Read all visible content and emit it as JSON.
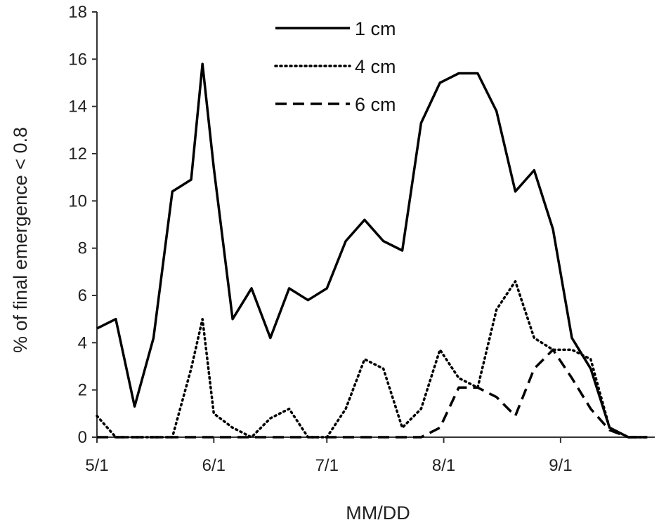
{
  "chart_data": {
    "type": "line",
    "title": "",
    "xlabel": "MM/DD",
    "ylabel": "% of final emergence < 0.8",
    "x_tick_labels": [
      "5/1",
      "6/1",
      "7/1",
      "8/1",
      "9/1"
    ],
    "x_tick_positions": [
      0,
      31,
      61,
      92,
      123
    ],
    "xlim": [
      0,
      148
    ],
    "ylim": [
      0,
      18
    ],
    "y_ticks": [
      0,
      2,
      4,
      6,
      8,
      10,
      12,
      14,
      16,
      18
    ],
    "x": [
      0,
      5,
      10,
      15,
      20,
      25,
      28,
      31,
      36,
      41,
      46,
      51,
      56,
      61,
      66,
      71,
      76,
      81,
      86,
      91,
      96,
      101,
      106,
      111,
      116,
      121,
      126,
      131,
      136,
      141,
      146
    ],
    "series": [
      {
        "name": "1 cm",
        "style": "solid",
        "values": [
          4.6,
          5.0,
          1.3,
          4.2,
          10.4,
          10.9,
          15.8,
          11.4,
          5.0,
          6.3,
          4.2,
          6.3,
          5.8,
          6.3,
          8.3,
          9.2,
          8.3,
          7.9,
          13.3,
          15.0,
          15.4,
          15.4,
          13.8,
          10.4,
          11.3,
          8.8,
          4.2,
          2.9,
          0.4,
          0.0,
          0.0
        ]
      },
      {
        "name": "4 cm",
        "style": "dotted",
        "values": [
          0.9,
          0.0,
          0.0,
          0.0,
          0.0,
          2.9,
          5.0,
          1.0,
          0.4,
          0.0,
          0.8,
          1.2,
          0.0,
          0.0,
          1.2,
          3.3,
          2.9,
          0.4,
          1.2,
          3.7,
          2.5,
          2.1,
          5.4,
          6.6,
          4.2,
          3.7,
          3.7,
          3.3,
          0.4,
          0.0,
          0.0
        ]
      },
      {
        "name": "6 cm",
        "style": "dashed",
        "values": [
          0.0,
          0.0,
          0.0,
          0.0,
          0.0,
          0.0,
          0.0,
          0.0,
          0.0,
          0.0,
          0.0,
          0.0,
          0.0,
          0.0,
          0.0,
          0.0,
          0.0,
          0.0,
          0.0,
          0.4,
          2.1,
          2.1,
          1.7,
          0.9,
          2.9,
          3.7,
          2.5,
          1.2,
          0.3,
          0.0,
          0.0
        ]
      }
    ],
    "legend_position": "top-center",
    "grid": false,
    "line_color": "#000000"
  }
}
